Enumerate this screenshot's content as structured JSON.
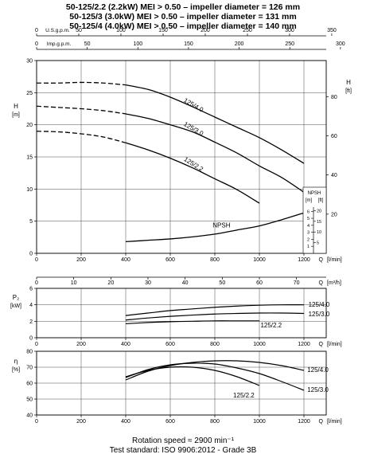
{
  "header_lines": [
    "50-125/2.2 (2.2kW) MEI > 0.50 – impeller diameter = 126 mm",
    "50-125/3    (3.0kW) MEI > 0.50 – impeller diameter = 131 mm",
    "50-125/4    (4.0kW) MEI > 0.50 – impeller diameter = 140 mm"
  ],
  "footer_lines": [
    "Rotation speed ≈ 2900 min⁻¹",
    "Test standard: ISO 9906:2012 - Grade 3B"
  ],
  "chart_data": [
    {
      "id": "head",
      "type": "line",
      "xlabel": "Q",
      "x_unit": "[l/min]",
      "xlim": [
        0,
        1300
      ],
      "xticks": [
        0,
        200,
        400,
        600,
        800,
        1000,
        1200
      ],
      "ylabel": "H",
      "y_unit": "[m]",
      "ylim": [
        0,
        30
      ],
      "yticks": [
        0,
        5,
        10,
        15,
        20,
        25,
        30
      ],
      "grid": true,
      "top_axes": [
        {
          "label": "U.S.g.p.m.",
          "ticks": [
            0,
            50,
            100,
            150,
            200,
            250,
            300,
            350
          ]
        },
        {
          "label": "Imp.g.p.m.",
          "ticks": [
            0,
            50,
            100,
            150,
            200,
            250,
            300
          ]
        }
      ],
      "right_axis": {
        "label": "H",
        "unit": "[ft]",
        "ticks": [
          20,
          40,
          60,
          80
        ]
      },
      "series": [
        {
          "name": "125/4.0",
          "x": [
            0,
            100,
            200,
            300,
            400,
            500,
            600,
            700,
            800,
            900,
            1000,
            1100,
            1200
          ],
          "y": [
            26.5,
            26.5,
            26.6,
            26.5,
            26.2,
            25.5,
            24.3,
            22.8,
            21.2,
            19.6,
            18.0,
            16.1,
            14.0
          ],
          "dashed_until": 400
        },
        {
          "name": "125/3.0",
          "x": [
            0,
            100,
            200,
            300,
            400,
            500,
            600,
            700,
            800,
            900,
            1000,
            1100,
            1200
          ],
          "y": [
            22.9,
            22.7,
            22.5,
            22.2,
            21.7,
            21.0,
            20.0,
            18.9,
            17.3,
            15.6,
            13.6,
            11.8,
            9.5
          ],
          "dashed_until": 400
        },
        {
          "name": "125/2.2",
          "x": [
            0,
            100,
            200,
            300,
            400,
            500,
            600,
            700,
            800,
            900,
            1000
          ],
          "y": [
            19.0,
            18.9,
            18.6,
            18.1,
            17.2,
            16.1,
            14.8,
            13.3,
            11.6,
            9.9,
            7.8
          ],
          "dashed_until": 400
        }
      ],
      "npsh": {
        "name": "NPSH",
        "axis_unit": "[m]",
        "axis_unit_ft": "[ft]",
        "ticks_m": [
          1,
          2,
          3,
          4,
          5,
          6
        ],
        "ticks_ft": [
          5,
          10,
          15,
          20
        ],
        "x": [
          400,
          500,
          600,
          700,
          800,
          900,
          1000,
          1100,
          1200
        ],
        "y": [
          1.7,
          1.9,
          2.1,
          2.4,
          2.8,
          3.4,
          4.0,
          4.9,
          5.9
        ]
      }
    },
    {
      "id": "power",
      "type": "line",
      "top_axis": {
        "label": "Q",
        "unit": "[m³/h]",
        "ticks": [
          0,
          10,
          20,
          30,
          40,
          50,
          60,
          70
        ]
      },
      "xlabel": "Q",
      "x_unit": "[l/min]",
      "xlim": [
        0,
        1300
      ],
      "xticks": [
        0,
        200,
        400,
        600,
        800,
        1000,
        1200
      ],
      "ylabel": "P₂",
      "y_unit": "[kW]",
      "ylim": [
        0,
        6
      ],
      "yticks": [
        0,
        2,
        4,
        6
      ],
      "grid": true,
      "series": [
        {
          "name": "125/4.0",
          "x": [
            400,
            500,
            600,
            700,
            800,
            900,
            1000,
            1100,
            1200
          ],
          "y": [
            2.7,
            3.0,
            3.3,
            3.5,
            3.7,
            3.85,
            3.95,
            4.0,
            4.0
          ]
        },
        {
          "name": "125/3.0",
          "x": [
            400,
            500,
            600,
            700,
            800,
            900,
            1000,
            1100,
            1200
          ],
          "y": [
            2.15,
            2.4,
            2.6,
            2.75,
            2.88,
            2.95,
            3.0,
            3.0,
            2.95
          ]
        },
        {
          "name": "125/2.2",
          "x": [
            400,
            500,
            600,
            700,
            800,
            900,
            1000
          ],
          "y": [
            1.7,
            1.85,
            1.95,
            2.0,
            2.05,
            2.05,
            2.05
          ]
        }
      ]
    },
    {
      "id": "efficiency",
      "type": "line",
      "xlabel": "Q",
      "x_unit": "[l/min]",
      "xlim": [
        0,
        1300
      ],
      "xticks": [
        0,
        200,
        400,
        600,
        800,
        1000,
        1200
      ],
      "ylabel": "η",
      "y_unit": "[%]",
      "ylim": [
        40,
        80
      ],
      "yticks": [
        40,
        50,
        60,
        70,
        80
      ],
      "grid": true,
      "series": [
        {
          "name": "125/4.0",
          "x": [
            400,
            500,
            600,
            700,
            800,
            900,
            1000,
            1100,
            1200
          ],
          "y": [
            62.0,
            67.5,
            71.0,
            73.0,
            74.0,
            74.0,
            73.0,
            71.0,
            68.0
          ]
        },
        {
          "name": "125/3.0",
          "x": [
            400,
            500,
            600,
            700,
            800,
            900,
            1000,
            1100,
            1200
          ],
          "y": [
            63.5,
            68.5,
            71.5,
            72.5,
            72.0,
            69.5,
            66.0,
            61.0,
            55.5
          ]
        },
        {
          "name": "125/2.2",
          "x": [
            400,
            500,
            600,
            700,
            800,
            900,
            1000
          ],
          "y": [
            64.0,
            68.0,
            70.0,
            70.0,
            68.0,
            64.0,
            58.5
          ]
        }
      ]
    }
  ]
}
